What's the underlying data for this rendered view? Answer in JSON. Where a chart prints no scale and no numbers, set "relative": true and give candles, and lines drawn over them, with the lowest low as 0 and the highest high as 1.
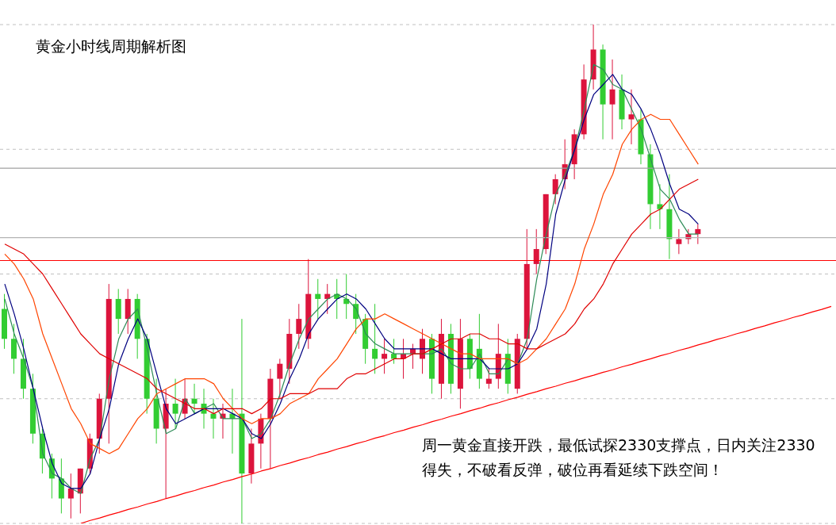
{
  "chart_data": {
    "type": "candlestick",
    "title": "黄金小时线周期解析图",
    "relative": true,
    "tick_labels": false,
    "grid": "y",
    "annotations": [
      "周一黄金直接开跌，最低试探2330支撑点，日内关注2330得失，不破看反弹，破位再看延续下跌空间！"
    ],
    "categories": [
      null,
      null,
      null,
      null,
      null,
      null,
      null,
      null,
      null,
      null,
      null,
      null,
      null,
      null,
      null,
      null,
      null,
      null,
      null,
      null,
      null,
      null,
      null,
      null,
      null,
      null,
      null,
      null,
      null,
      null,
      null,
      null,
      null,
      null,
      null,
      null,
      null,
      null,
      null,
      null,
      null,
      null,
      null,
      null,
      null,
      null,
      null,
      null,
      null,
      null,
      null,
      null,
      null,
      null,
      null,
      null,
      null,
      null,
      null,
      null,
      null,
      null,
      null,
      null,
      null,
      null,
      null,
      null,
      null,
      null,
      null,
      null,
      null,
      null,
      null,
      null,
      null,
      null,
      null,
      null,
      null,
      null,
      null,
      null,
      null,
      null,
      null,
      null
    ],
    "ref_lines": [
      {
        "axis": "y",
        "value": 0.712,
        "color": "#a0a0a0"
      },
      {
        "axis": "y",
        "value": 0.573,
        "color": "#b4b4b4"
      },
      {
        "axis": "y",
        "value": 0.527,
        "color": "#ff0000"
      }
    ],
    "series": [
      {
        "type": "line",
        "color": "#2e8b57",
        "values": [
          0.45,
          0.38,
          0.33,
          0.27,
          0.14,
          0.1,
          0.09,
          0.07,
          0.06,
          0.13,
          0.17,
          0.29,
          0.37,
          0.41,
          0.43,
          0.35,
          0.26,
          0.18,
          0.19,
          0.25,
          0.22,
          0.23,
          0.24,
          0.21,
          0.21,
          0.21,
          0.17,
          0.18,
          0.21,
          0.26,
          0.32,
          0.37,
          0.41,
          0.43,
          0.45,
          0.46,
          0.45,
          0.43,
          0.38,
          0.36,
          0.35,
          0.34,
          0.34,
          0.34,
          0.34,
          0.34,
          0.35,
          0.32,
          0.31,
          0.31,
          0.34,
          0.3,
          0.3,
          0.33,
          0.32,
          0.37,
          0.49,
          0.58,
          0.66,
          0.7,
          0.75,
          0.83,
          0.92,
          0.91,
          0.88,
          0.87,
          0.83,
          0.79,
          0.73,
          0.67,
          0.65,
          0.61,
          0.58,
          0.58,
          null,
          null,
          null,
          null,
          null,
          null,
          null,
          null,
          null,
          null,
          null,
          null,
          null,
          null
        ]
      },
      {
        "type": "line",
        "color": "#000080",
        "values": [
          0.48,
          0.42,
          0.35,
          0.27,
          0.19,
          0.12,
          0.08,
          0.07,
          0.07,
          0.1,
          0.17,
          0.23,
          0.32,
          0.37,
          0.41,
          0.37,
          0.3,
          0.23,
          0.2,
          0.21,
          0.22,
          0.23,
          0.23,
          0.23,
          0.22,
          0.21,
          0.18,
          0.17,
          0.2,
          0.24,
          0.29,
          0.33,
          0.38,
          0.41,
          0.43,
          0.45,
          0.46,
          0.45,
          0.43,
          0.4,
          0.37,
          0.35,
          0.35,
          0.35,
          0.35,
          0.35,
          0.34,
          0.33,
          0.33,
          0.33,
          0.33,
          0.31,
          0.31,
          0.31,
          0.32,
          0.35,
          0.39,
          0.48,
          0.62,
          0.69,
          0.75,
          0.81,
          0.86,
          0.88,
          0.9,
          0.87,
          0.86,
          0.83,
          0.79,
          0.74,
          0.68,
          0.63,
          0.62,
          0.6,
          null,
          null,
          null,
          null,
          null,
          null,
          null,
          null,
          null,
          null,
          null,
          null,
          null,
          null
        ]
      },
      {
        "type": "line",
        "color": "#ff4500",
        "values": [
          0.54,
          0.52,
          0.49,
          0.45,
          0.38,
          0.33,
          0.28,
          0.23,
          0.2,
          0.16,
          0.15,
          0.14,
          0.15,
          0.18,
          0.21,
          0.23,
          0.26,
          0.27,
          0.28,
          0.29,
          0.29,
          0.29,
          0.28,
          0.25,
          0.23,
          0.21,
          0.2,
          0.21,
          0.21,
          0.22,
          0.24,
          0.25,
          0.26,
          0.29,
          0.31,
          0.33,
          0.36,
          0.39,
          0.41,
          0.41,
          0.42,
          0.41,
          0.4,
          0.39,
          0.38,
          0.37,
          0.36,
          0.35,
          0.34,
          0.34,
          0.33,
          0.33,
          0.33,
          0.33,
          0.32,
          0.33,
          0.35,
          0.37,
          0.4,
          0.43,
          0.48,
          0.55,
          0.6,
          0.66,
          0.7,
          0.76,
          0.79,
          0.81,
          0.82,
          0.81,
          0.81,
          0.78,
          0.75,
          0.72,
          null,
          null,
          null,
          null,
          null,
          null,
          null,
          null,
          null,
          null,
          null,
          null,
          null,
          null
        ]
      },
      {
        "type": "line",
        "color": "#e00000",
        "values": [
          0.56,
          0.55,
          0.54,
          0.52,
          0.5,
          0.47,
          0.44,
          0.41,
          0.38,
          0.36,
          0.34,
          0.33,
          0.32,
          0.31,
          0.3,
          0.29,
          0.27,
          0.26,
          0.25,
          0.24,
          0.23,
          0.23,
          0.22,
          0.23,
          0.23,
          0.23,
          0.22,
          0.23,
          0.25,
          0.25,
          0.26,
          0.26,
          0.26,
          0.27,
          0.27,
          0.27,
          0.29,
          0.3,
          0.3,
          0.31,
          0.32,
          0.33,
          0.33,
          0.34,
          0.34,
          0.35,
          0.36,
          0.37,
          0.37,
          0.38,
          0.38,
          0.37,
          0.37,
          0.36,
          0.36,
          0.35,
          0.35,
          0.36,
          0.37,
          0.38,
          0.4,
          0.43,
          0.45,
          0.48,
          0.52,
          0.55,
          0.58,
          0.6,
          0.62,
          0.63,
          0.65,
          0.67,
          0.68,
          0.69,
          null,
          null,
          null,
          null,
          null,
          null,
          null,
          null,
          null,
          null,
          null,
          null,
          null,
          null
        ]
      },
      {
        "type": "line",
        "color": "#ff0000",
        "values": [
          null,
          null,
          null,
          null,
          null,
          null,
          null,
          null,
          0.0,
          0.006,
          0.011,
          0.017,
          0.022,
          0.028,
          0.033,
          0.039,
          0.044,
          0.05,
          0.055,
          0.061,
          0.066,
          0.072,
          0.077,
          0.083,
          0.088,
          0.094,
          0.099,
          0.105,
          0.11,
          0.116,
          0.121,
          0.127,
          0.132,
          0.138,
          0.143,
          0.149,
          0.154,
          0.16,
          0.165,
          0.171,
          0.176,
          0.182,
          0.187,
          0.193,
          0.198,
          0.204,
          0.209,
          0.215,
          0.22,
          0.226,
          0.231,
          0.237,
          0.242,
          0.248,
          0.253,
          0.259,
          0.264,
          0.27,
          0.275,
          0.281,
          0.286,
          0.292,
          0.297,
          0.303,
          0.308,
          0.314,
          0.319,
          0.325,
          0.33,
          0.336,
          0.341,
          0.347,
          0.352,
          0.358,
          0.363,
          0.369,
          0.374,
          0.38,
          0.385,
          0.391,
          0.396,
          0.402,
          0.407,
          0.413,
          0.418,
          0.424,
          0.429,
          0.435
        ]
      },
      {
        "ohlc": [
          [
            0.43,
            0.46,
            0.35,
            0.37
          ],
          [
            0.37,
            0.4,
            0.3,
            0.33
          ],
          [
            0.33,
            0.37,
            0.25,
            0.27
          ],
          [
            0.27,
            0.3,
            0.16,
            0.18
          ],
          [
            0.18,
            0.19,
            0.1,
            0.13
          ],
          [
            0.13,
            0.14,
            0.05,
            0.09
          ],
          [
            0.09,
            0.13,
            0.02,
            0.05
          ],
          [
            0.05,
            0.1,
            0.01,
            0.07
          ],
          [
            0.06,
            0.11,
            0.02,
            0.11
          ],
          [
            0.11,
            0.18,
            0.1,
            0.17
          ],
          [
            0.17,
            0.26,
            0.14,
            0.25
          ],
          [
            0.25,
            0.48,
            0.16,
            0.45
          ],
          [
            0.45,
            0.47,
            0.38,
            0.41
          ],
          [
            0.41,
            0.47,
            0.38,
            0.45
          ],
          [
            0.45,
            0.46,
            0.33,
            0.37
          ],
          [
            0.37,
            0.38,
            0.22,
            0.25
          ],
          [
            0.25,
            0.29,
            0.16,
            0.19
          ],
          [
            0.19,
            0.27,
            0.05,
            0.24
          ],
          [
            0.24,
            0.29,
            0.19,
            0.22
          ],
          [
            0.22,
            0.29,
            0.21,
            0.25
          ],
          [
            0.25,
            0.28,
            0.22,
            0.24
          ],
          [
            0.24,
            0.27,
            0.19,
            0.22
          ],
          [
            0.22,
            0.25,
            0.17,
            0.21
          ],
          [
            0.21,
            0.24,
            0.17,
            0.22
          ],
          [
            0.22,
            0.27,
            0.14,
            0.21
          ],
          [
            0.22,
            0.41,
            0.0,
            0.1
          ],
          [
            0.1,
            0.19,
            0.08,
            0.16
          ],
          [
            0.16,
            0.22,
            0.11,
            0.21
          ],
          [
            0.21,
            0.31,
            0.11,
            0.29
          ],
          [
            0.29,
            0.33,
            0.25,
            0.32
          ],
          [
            0.31,
            0.41,
            0.28,
            0.38
          ],
          [
            0.38,
            0.44,
            0.35,
            0.41
          ],
          [
            0.37,
            0.53,
            0.35,
            0.46
          ],
          [
            0.46,
            0.49,
            0.41,
            0.45
          ],
          [
            0.45,
            0.48,
            0.42,
            0.46
          ],
          [
            0.46,
            0.49,
            0.41,
            0.45
          ],
          [
            0.45,
            0.5,
            0.41,
            0.44
          ],
          [
            0.44,
            0.46,
            0.38,
            0.41
          ],
          [
            0.41,
            0.42,
            0.32,
            0.35
          ],
          [
            0.35,
            0.44,
            0.3,
            0.33
          ],
          [
            0.33,
            0.37,
            0.3,
            0.34
          ],
          [
            0.34,
            0.37,
            0.32,
            0.33
          ],
          [
            0.33,
            0.37,
            0.29,
            0.34
          ],
          [
            0.34,
            0.36,
            0.31,
            0.35
          ],
          [
            0.33,
            0.39,
            0.3,
            0.37
          ],
          [
            0.37,
            0.38,
            0.26,
            0.29
          ],
          [
            0.28,
            0.41,
            0.25,
            0.38
          ],
          [
            0.38,
            0.4,
            0.26,
            0.28
          ],
          [
            0.27,
            0.41,
            0.23,
            0.37
          ],
          [
            0.37,
            0.38,
            0.29,
            0.31
          ],
          [
            0.35,
            0.42,
            0.27,
            0.29
          ],
          [
            0.28,
            0.31,
            0.27,
            0.29
          ],
          [
            0.29,
            0.4,
            0.27,
            0.34
          ],
          [
            0.34,
            0.37,
            0.26,
            0.28
          ],
          [
            0.27,
            0.38,
            0.26,
            0.37
          ],
          [
            0.37,
            0.59,
            0.35,
            0.52
          ],
          [
            0.52,
            0.59,
            0.5,
            0.55
          ],
          [
            0.55,
            0.66,
            0.54,
            0.66
          ],
          [
            0.66,
            0.7,
            0.64,
            0.69
          ],
          [
            0.69,
            0.77,
            0.67,
            0.72
          ],
          [
            0.72,
            0.79,
            0.69,
            0.78
          ],
          [
            0.78,
            0.92,
            0.77,
            0.89
          ],
          [
            0.89,
            1,
            0.87,
            0.95
          ],
          [
            0.95,
            0.96,
            0.77,
            0.84
          ],
          [
            0.84,
            0.93,
            0.77,
            0.87
          ],
          [
            0.87,
            0.9,
            0.79,
            0.81
          ],
          [
            0.81,
            0.87,
            0.76,
            0.82
          ],
          [
            0.81,
            0.83,
            0.72,
            0.74
          ],
          [
            0.74,
            0.76,
            0.59,
            0.64
          ],
          [
            0.64,
            0.68,
            0.59,
            0.63
          ],
          [
            0.63,
            0.7,
            0.53,
            0.57
          ],
          [
            0.56,
            0.59,
            0.54,
            0.57
          ],
          [
            0.57,
            0.59,
            0.56,
            0.58
          ],
          [
            0.58,
            0.6,
            0.56,
            0.59
          ],
          null,
          null,
          null,
          null,
          null,
          null,
          null,
          null,
          null,
          null,
          null,
          null,
          null,
          null
        ],
        "colors": [
          "#32cd32",
          "#32cd32",
          "#32cd32",
          "#32cd32",
          "#32cd32",
          "#32cd32",
          "#32cd32",
          "#dc143c",
          "#dc143c",
          "#dc143c",
          "#dc143c",
          "#dc143c",
          "#32cd32",
          "#dc143c",
          "#32cd32",
          "#32cd32",
          "#32cd32",
          "#dc143c",
          "#32cd32",
          "#dc143c",
          "#32cd32",
          "#32cd32",
          "#32cd32",
          "#dc143c",
          "#32cd32",
          "#32cd32",
          "#dc143c",
          "#dc143c",
          "#dc143c",
          "#dc143c",
          "#dc143c",
          "#dc143c",
          "#dc143c",
          "#32cd32",
          "#dc143c",
          "#32cd32",
          "#32cd32",
          "#32cd32",
          "#32cd32",
          "#32cd32",
          "#dc143c",
          "#32cd32",
          "#dc143c",
          "#dc143c",
          "#dc143c",
          "#32cd32",
          "#dc143c",
          "#32cd32",
          "#dc143c",
          "#32cd32",
          "#32cd32",
          "#dc143c",
          "#dc143c",
          "#32cd32",
          "#dc143c",
          "#dc143c",
          "#dc143c",
          "#dc143c",
          "#dc143c",
          "#dc143c",
          "#dc143c",
          "#dc143c",
          "#dc143c",
          "#32cd32",
          "#dc143c",
          "#32cd32",
          "#dc143c",
          "#32cd32",
          "#32cd32",
          "#32cd32",
          "#32cd32",
          "#dc143c",
          "#dc143c",
          "#dc143c",
          null,
          null,
          null,
          null,
          null,
          null,
          null,
          null,
          null,
          null,
          null,
          null,
          null,
          null
        ]
      }
    ]
  }
}
